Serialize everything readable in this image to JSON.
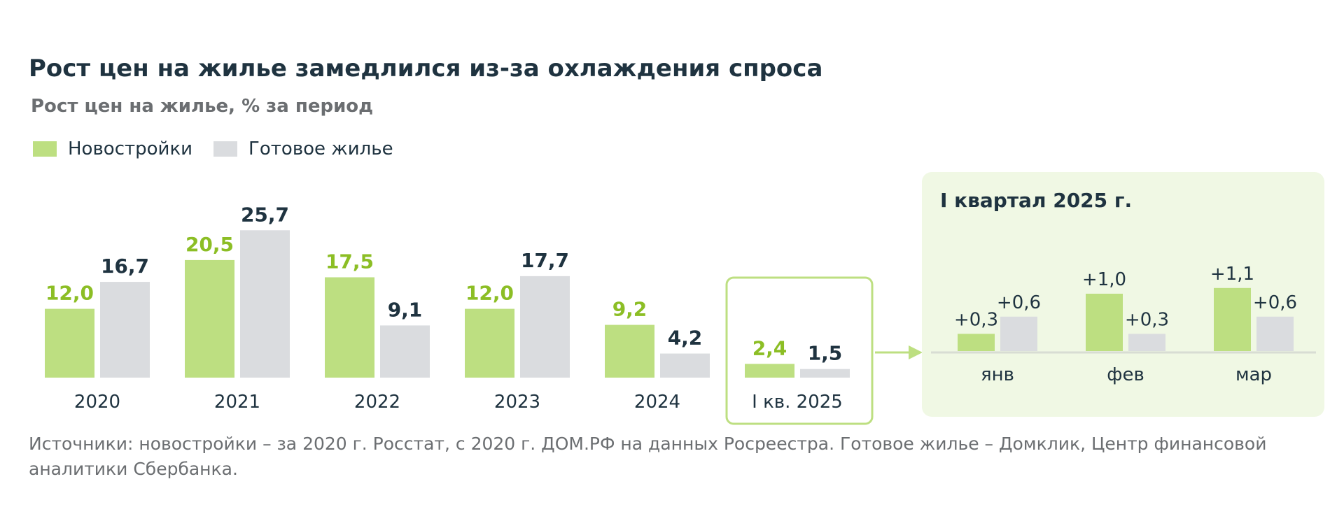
{
  "header": {
    "title": "Рост цен на жилье замедлился из-за охлаждения спроса",
    "subtitle": "Рост цен на жилье, % за период"
  },
  "colors": {
    "new": "#bddf81",
    "secondary": "#dadcdf",
    "new_label": "#8cbe25",
    "secondary_label": "#1f3340",
    "highlight_border": "#bddf81",
    "inset_bg": "#f0f8e4",
    "axis": "#d8ddd3"
  },
  "chart_data": [
    {
      "type": "bar",
      "title": "",
      "categories": [
        "2020",
        "2021",
        "2022",
        "2023",
        "2024",
        "I кв. 2025"
      ],
      "series": [
        {
          "name": "Новостройки",
          "values": [
            12.0,
            20.5,
            17.5,
            12.0,
            9.2,
            2.4
          ],
          "labels": [
            "12,0",
            "20,5",
            "17,5",
            "12,0",
            "9,2",
            "2,4"
          ]
        },
        {
          "name": "Готовое жилье",
          "values": [
            16.7,
            25.7,
            9.1,
            17.7,
            4.2,
            1.5
          ],
          "labels": [
            "16,7",
            "25,7",
            "9,1",
            "17,7",
            "4,2",
            "1,5"
          ]
        }
      ],
      "highlighted_category": "I кв. 2025",
      "ylim": [
        0,
        26
      ]
    },
    {
      "type": "bar",
      "title": "I квартал 2025 г.",
      "categories": [
        "янв",
        "фев",
        "мар"
      ],
      "series": [
        {
          "name": "Новостройки",
          "values": [
            0.3,
            1.0,
            1.1
          ],
          "labels": [
            "+0,3",
            "+1,0",
            "+1,1"
          ]
        },
        {
          "name": "Готовое жилье",
          "values": [
            0.6,
            0.3,
            0.6
          ],
          "labels": [
            "+0,6",
            "+0,3",
            "+0,6"
          ]
        }
      ],
      "ylim": [
        0,
        1.2
      ]
    }
  ],
  "source": "Источники: новостройки – за 2020 г. Росстат, с 2020 г. ДОМ.РФ на данных Росреестра. Готовое жилье – Домклик, Центр финансовой аналитики Сбербанка."
}
